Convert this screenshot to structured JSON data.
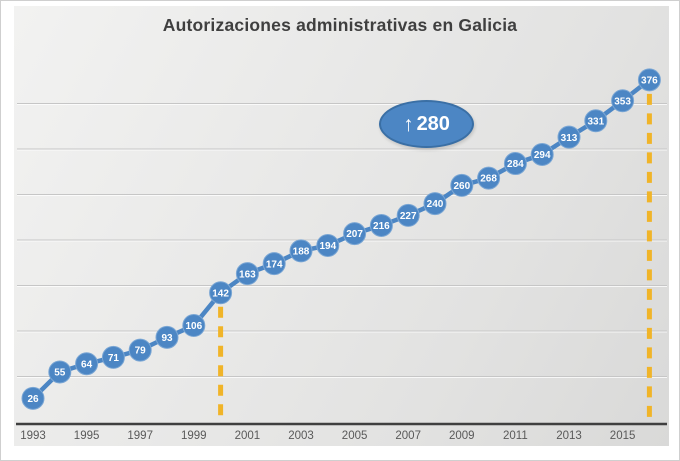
{
  "chart_data": {
    "type": "line",
    "title": "Autorizaciones administrativas en Galicia",
    "x": [
      1993,
      1994,
      1995,
      1996,
      1997,
      1998,
      1999,
      2000,
      2001,
      2002,
      2003,
      2004,
      2005,
      2006,
      2007,
      2008,
      2009,
      2010,
      2011,
      2012,
      2013,
      2014,
      2015,
      2016
    ],
    "values": [
      26,
      55,
      64,
      71,
      79,
      93,
      106,
      142,
      163,
      174,
      188,
      194,
      207,
      216,
      227,
      240,
      260,
      268,
      284,
      294,
      313,
      331,
      353,
      376
    ],
    "x_tick_labels": [
      "1993",
      "1995",
      "1997",
      "1999",
      "2001",
      "2003",
      "2005",
      "2007",
      "2009",
      "2011",
      "2013",
      "2015"
    ],
    "xlabel": "",
    "ylabel": "",
    "ylim": [
      0,
      420
    ],
    "gridline_step": 50,
    "grid": "horizontal-only",
    "legend": "none",
    "data_labels": "inside-markers",
    "reference_lines_at_years": [
      2000,
      2016
    ]
  },
  "annotation": {
    "arrow_icon": "↑",
    "value": "280"
  },
  "colors": {
    "series_blue": "#4c86c4",
    "marker_ring": "#7aa6d4",
    "marker_text": "#ffffff",
    "annotation_fill": "#4c86c4",
    "annotation_border": "#3a6fa5",
    "reference_dash_yellow": "#f0b428",
    "axis_line": "#3f3f3f",
    "tick_text": "#595959",
    "title_text": "#3f3f3f",
    "gridline": "#c6c6c6"
  }
}
